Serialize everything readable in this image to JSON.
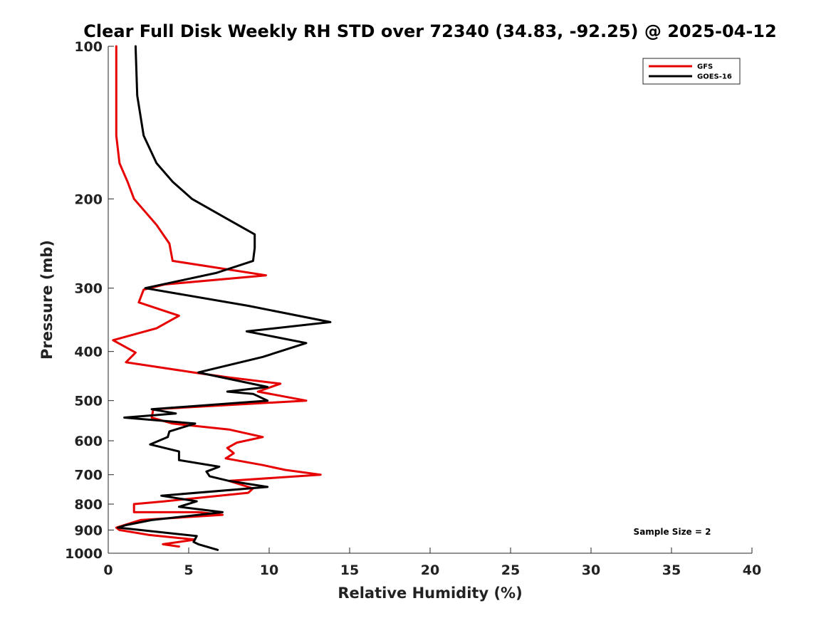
{
  "chart_data": {
    "type": "line",
    "title": "Clear Full Disk Weekly RH STD over 72340 (34.83, -92.25) @ 2025-04-12",
    "xlabel": "Relative Humidity (%)",
    "ylabel": "Pressure (mb)",
    "xlim": [
      0,
      40
    ],
    "ylim": [
      100,
      1000
    ],
    "yscale": "log",
    "yreversed": true,
    "xticks": [
      0,
      5,
      10,
      15,
      20,
      25,
      30,
      35,
      40
    ],
    "xtick_labels": [
      "0",
      "5",
      "10",
      "15",
      "20",
      "25",
      "30",
      "35",
      "40"
    ],
    "yticks": [
      100,
      200,
      300,
      400,
      500,
      600,
      700,
      800,
      900,
      1000
    ],
    "ytick_labels": [
      "100",
      "200",
      "300",
      "400",
      "500",
      "600",
      "700",
      "800",
      "900",
      "1000"
    ],
    "grid": false,
    "legend_position": "top-right",
    "annotation": "Sample Size = 2",
    "series": [
      {
        "name": "GFS",
        "color": "#e60000",
        "x": [
          0.5,
          0.5,
          0.5,
          0.7,
          1.2,
          1.6,
          3.0,
          3.8,
          4.0,
          9.8,
          3.5,
          2.2,
          1.9,
          4.4,
          3.0,
          0.3,
          1.7,
          1.1,
          5.3,
          7.5,
          10.7,
          9.3,
          12.3,
          2.8,
          2.7,
          4.0,
          7.5,
          9.6,
          8.0,
          7.4,
          7.8,
          7.3,
          9.6,
          11.0,
          13.2,
          7.5,
          9.0,
          8.7,
          3.5,
          1.6,
          1.6,
          5.7,
          7.1,
          2.0,
          0.5,
          0.7,
          2.5,
          5.4,
          3.4,
          4.4
        ],
        "y": [
          100,
          120,
          150,
          170,
          185,
          200,
          225,
          245,
          265,
          283,
          295,
          302,
          320,
          340,
          360,
          380,
          402,
          420,
          440,
          450,
          463,
          480,
          500,
          520,
          540,
          555,
          570,
          590,
          605,
          620,
          635,
          650,
          670,
          685,
          700,
          720,
          745,
          760,
          790,
          800,
          830,
          830,
          840,
          860,
          890,
          900,
          920,
          940,
          960,
          970
        ]
      },
      {
        "name": "GOES-16",
        "color": "#000000",
        "x": [
          1.7,
          1.8,
          2.2,
          3.0,
          4.0,
          5.2,
          7.5,
          9.1,
          9.1,
          9.0,
          6.7,
          2.3,
          8.7,
          13.8,
          8.6,
          12.3,
          9.6,
          5.6,
          9.9,
          7.4,
          9.0,
          9.9,
          2.7,
          4.2,
          1.0,
          5.4,
          3.8,
          3.7,
          2.6,
          4.4,
          4.4,
          6.9,
          6.1,
          6.3,
          7.5,
          9.9,
          3.3,
          5.5,
          4.4,
          7.1,
          2.7,
          1.1,
          0.6,
          5.5,
          5.3,
          5.6,
          6.8
        ],
        "y": [
          100,
          125,
          150,
          170,
          185,
          200,
          220,
          235,
          250,
          265,
          280,
          300,
          325,
          350,
          365,
          385,
          410,
          440,
          470,
          480,
          485,
          500,
          520,
          530,
          540,
          555,
          575,
          590,
          610,
          630,
          655,
          675,
          690,
          705,
          720,
          740,
          770,
          790,
          810,
          830,
          860,
          880,
          890,
          925,
          950,
          960,
          985
        ]
      }
    ]
  }
}
